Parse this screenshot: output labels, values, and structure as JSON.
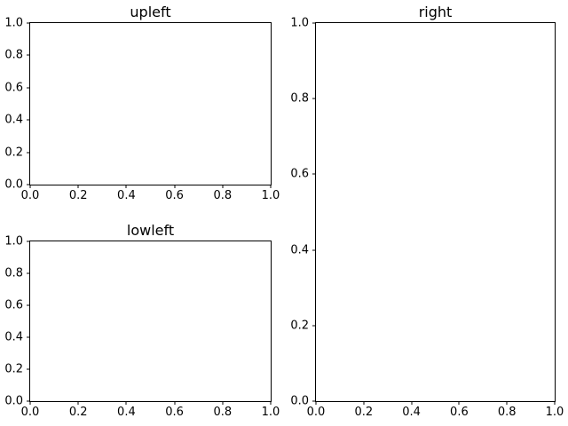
{
  "figure": {
    "background_color": "#ffffff",
    "frame_color": "#000000",
    "text_color": "#000000"
  },
  "chart_data": [
    {
      "id": "upleft",
      "type": "line",
      "title": "upleft",
      "xlabel": "",
      "ylabel": "",
      "xlim": [
        0.0,
        1.0
      ],
      "ylim": [
        0.0,
        1.0
      ],
      "x_tick_labels": [
        "0.0",
        "0.2",
        "0.4",
        "0.6",
        "0.8",
        "1.0"
      ],
      "y_tick_labels": [
        "0.0",
        "0.2",
        "0.4",
        "0.6",
        "0.8",
        "1.0"
      ],
      "grid": false,
      "legend": null,
      "series": []
    },
    {
      "id": "lowleft",
      "type": "line",
      "title": "lowleft",
      "xlabel": "",
      "ylabel": "",
      "xlim": [
        0.0,
        1.0
      ],
      "ylim": [
        0.0,
        1.0
      ],
      "x_tick_labels": [
        "0.0",
        "0.2",
        "0.4",
        "0.6",
        "0.8",
        "1.0"
      ],
      "y_tick_labels": [
        "0.0",
        "0.2",
        "0.4",
        "0.6",
        "0.8",
        "1.0"
      ],
      "grid": false,
      "legend": null,
      "series": []
    },
    {
      "id": "right",
      "type": "line",
      "title": "right",
      "xlabel": "",
      "ylabel": "",
      "xlim": [
        0.0,
        1.0
      ],
      "ylim": [
        0.0,
        1.0
      ],
      "x_tick_labels": [
        "0.0",
        "0.2",
        "0.4",
        "0.6",
        "0.8",
        "1.0"
      ],
      "y_tick_labels": [
        "0.0",
        "0.2",
        "0.4",
        "0.6",
        "0.8",
        "1.0"
      ],
      "grid": false,
      "legend": null,
      "series": []
    }
  ]
}
